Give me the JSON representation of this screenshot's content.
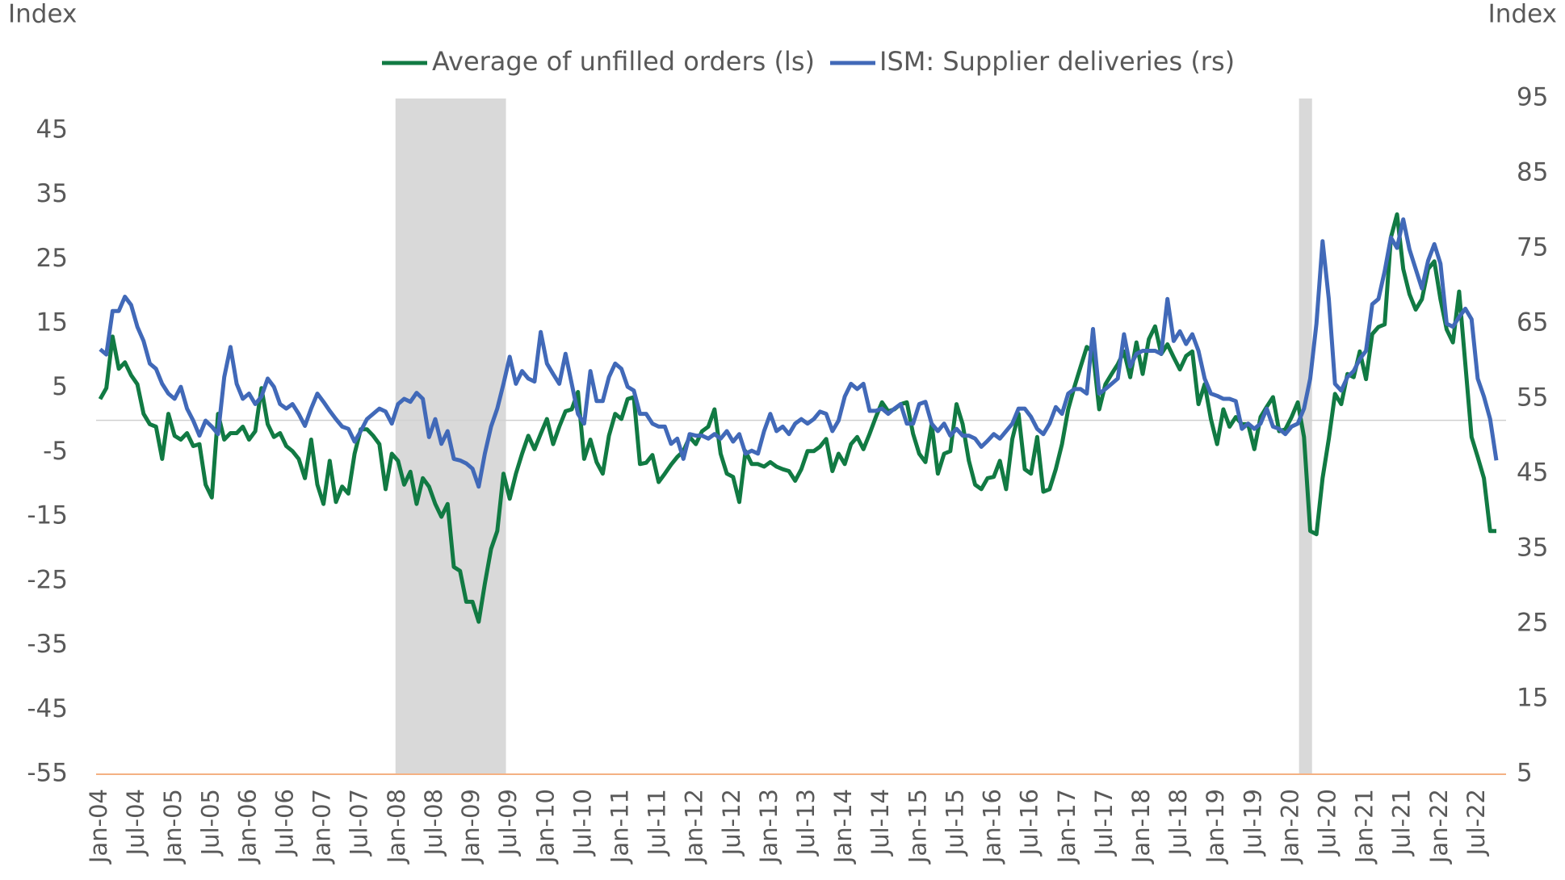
{
  "chart_data": {
    "type": "line",
    "y_label": "Index",
    "y2_label": "Index",
    "categories": [
      "Jan-04",
      null,
      null,
      null,
      null,
      null,
      "Jul-04",
      null,
      null,
      null,
      null,
      null,
      "Jan-05",
      null,
      null,
      null,
      null,
      null,
      "Jul-05",
      null,
      null,
      null,
      null,
      null,
      "Jan-06",
      null,
      null,
      null,
      null,
      null,
      "Jul-06",
      null,
      null,
      null,
      null,
      null,
      "Jan-07",
      null,
      null,
      null,
      null,
      null,
      "Jul-07",
      null,
      null,
      null,
      null,
      null,
      "Jan-08",
      null,
      null,
      null,
      null,
      null,
      "Jul-08",
      null,
      null,
      null,
      null,
      null,
      "Jan-09",
      null,
      null,
      null,
      null,
      null,
      "Jul-09",
      null,
      null,
      null,
      null,
      null,
      "Jan-10",
      null,
      null,
      null,
      null,
      null,
      "Jul-10",
      null,
      null,
      null,
      null,
      null,
      "Jan-11",
      null,
      null,
      null,
      null,
      null,
      "Jul-11",
      null,
      null,
      null,
      null,
      null,
      "Jan-12",
      null,
      null,
      null,
      null,
      null,
      "Jul-12",
      null,
      null,
      null,
      null,
      null,
      "Jan-13",
      null,
      null,
      null,
      null,
      null,
      "Jul-13",
      null,
      null,
      null,
      null,
      null,
      "Jan-14",
      null,
      null,
      null,
      null,
      null,
      "Jul-14",
      null,
      null,
      null,
      null,
      null,
      "Jan-15",
      null,
      null,
      null,
      null,
      null,
      "Jul-15",
      null,
      null,
      null,
      null,
      null,
      "Jan-16",
      null,
      null,
      null,
      null,
      null,
      "Jul-16",
      null,
      null,
      null,
      null,
      null,
      "Jan-17",
      null,
      null,
      null,
      null,
      null,
      "Jul-17",
      null,
      null,
      null,
      null,
      null,
      "Jan-18",
      null,
      null,
      null,
      null,
      null,
      "Jul-18",
      null,
      null,
      null,
      null,
      null,
      "Jan-19",
      null,
      null,
      null,
      null,
      null,
      "Jul-19",
      null,
      null,
      null,
      null,
      null,
      "Jan-20",
      null,
      null,
      null,
      null,
      null,
      "Jul-20",
      null,
      null,
      null,
      null,
      null,
      "Jan-21",
      null,
      null,
      null,
      null,
      null,
      "Jul-21",
      null,
      null,
      null,
      null,
      null,
      "Jan-22",
      null,
      null,
      null,
      null,
      null,
      "Jul-22",
      null,
      null,
      null
    ],
    "series": [
      {
        "name": "Average of unfilled orders (ls)",
        "color": "#117a43",
        "values": [
          3.3,
          5,
          13,
          8,
          9,
          7,
          5.6,
          1,
          -0.6,
          -1,
          -6,
          1,
          -2.4,
          -3,
          -2,
          -4,
          -3.7,
          -10,
          -12,
          1,
          -3,
          -2,
          -2,
          -1,
          -3,
          -1.7,
          5,
          -0.6,
          -2.6,
          -2,
          -4,
          -4.8,
          -6,
          -9,
          -3,
          -10,
          -13,
          -6.3,
          -12.7,
          -10.3,
          -11.4,
          -5.2,
          -1.4,
          -1.4,
          -2.4,
          -3.7,
          -10.7,
          -5.2,
          -6.3,
          -10,
          -8,
          -13,
          -9,
          -10.3,
          -13,
          -15,
          -13,
          -22.8,
          -23.4,
          -28.2,
          -28.2,
          -31.3,
          -25.4,
          -20,
          -17.2,
          -8.3,
          -12.2,
          -8.3,
          -5.2,
          -2.4,
          -4.5,
          -2.1,
          0.2,
          -3.7,
          -1,
          1.4,
          1.7,
          4.4,
          -6,
          -3,
          -6.5,
          -8.3,
          -2.4,
          1,
          0.2,
          3.3,
          3.6,
          -6.8,
          -6.6,
          -5.4,
          -9.6,
          -8.3,
          -6.9,
          -5.7,
          -4.8,
          -2.6,
          -3.7,
          -1.7,
          -1,
          1.7,
          -5.2,
          -8.3,
          -8.8,
          -12.7,
          -4.8,
          -6.8,
          -6.8,
          -7.2,
          -6.5,
          -7.2,
          -7.6,
          -7.9,
          -9.4,
          -7.6,
          -4.8,
          -4.8,
          -4.1,
          -2.9,
          -7.9,
          -5.2,
          -6.8,
          -3.7,
          -2.6,
          -4.5,
          -2.1,
          0.5,
          2.8,
          1.4,
          1.7,
          2.5,
          2.8,
          -2.1,
          -5.2,
          -6.5,
          -0.6,
          -8.3,
          -5.2,
          -4.8,
          2.5,
          -0.6,
          -6.3,
          -10,
          -10.7,
          -9,
          -8.8,
          -6.3,
          -10.7,
          -2.9,
          1,
          -7.6,
          -8.3,
          -2.6,
          -11.1,
          -10.7,
          -7.6,
          -3.7,
          1.7,
          5.2,
          8.3,
          11.4,
          10.6,
          1.7,
          5.6,
          7.2,
          8.7,
          10.7,
          6.7,
          12.1,
          7.2,
          12.6,
          14.6,
          10.3,
          11.8,
          9.8,
          7.9,
          10,
          10.7,
          2.5,
          5.6,
          0.2,
          -3.7,
          1.7,
          -1,
          0.5,
          -0.6,
          -0.6,
          -4.5,
          0.5,
          2.1,
          3.6,
          -1.7,
          -1.4,
          0.5,
          2.8,
          -2.6,
          -17.2,
          -17.7,
          -9,
          -2.9,
          4.1,
          2.5,
          7.2,
          6.7,
          10.7,
          6.4,
          13.4,
          14.5,
          14.9,
          28.4,
          32,
          23.5,
          19.6,
          17.2,
          18.8,
          23.5,
          24.7,
          18.8,
          14.1,
          12.1,
          20,
          8.7,
          -2.6,
          -5.7,
          -9,
          -17.2,
          -17.2
        ]
      },
      {
        "name": "ISM: Supplier deliveries (rs)",
        "color": "#4169b8",
        "axis": "y2",
        "values": [
          61.6,
          60.9,
          66.7,
          66.7,
          68.6,
          67.5,
          64.6,
          62.7,
          59.7,
          59,
          57,
          55.7,
          55,
          56.6,
          53.7,
          52.1,
          50.1,
          52.1,
          51.3,
          50.3,
          57.9,
          61.9,
          57,
          55,
          55.7,
          54.3,
          55.3,
          57.7,
          56.6,
          54.3,
          53.7,
          54.3,
          53,
          51.4,
          53.7,
          55.7,
          54.6,
          53.4,
          52.3,
          51.3,
          51,
          49.3,
          50.7,
          52.3,
          53,
          53.7,
          53.3,
          51.7,
          54.3,
          55,
          54.6,
          55.8,
          55,
          49.9,
          52.3,
          49,
          50.7,
          47,
          46.8,
          46.4,
          45.7,
          43.3,
          47.7,
          51.3,
          53.7,
          57,
          60.6,
          57,
          58.7,
          57.7,
          57.3,
          63.9,
          59.7,
          58.3,
          57,
          61,
          57,
          53,
          51.7,
          58.7,
          54.7,
          54.7,
          57.9,
          59.7,
          59,
          56.6,
          56.1,
          53,
          53,
          51.7,
          51.3,
          51.3,
          49,
          49.7,
          47,
          50.3,
          50.1,
          50.1,
          49.7,
          50.3,
          49.7,
          50.7,
          49.3,
          50.3,
          47.7,
          48.1,
          47.7,
          50.7,
          53,
          50.7,
          51.3,
          50.3,
          51.7,
          52.3,
          51.7,
          52.3,
          53.3,
          53,
          50.7,
          52.1,
          55.3,
          57,
          56.3,
          57,
          53.4,
          53.4,
          53.7,
          53,
          53.7,
          54.3,
          51.7,
          51.7,
          54.3,
          54.6,
          51.7,
          50.7,
          51.7,
          50.1,
          51,
          50.1,
          50.1,
          49.7,
          48.6,
          49.4,
          50.3,
          49.7,
          50.7,
          51.7,
          53.7,
          53.7,
          52.6,
          51,
          50.3,
          51.7,
          53.9,
          53,
          55.7,
          56.3,
          56.3,
          55.7,
          64.3,
          55.7,
          56.3,
          57,
          57.7,
          63.6,
          59.3,
          61,
          61.4,
          61.4,
          61.4,
          61,
          68.3,
          62.7,
          64,
          62.3,
          63.6,
          61.4,
          57.7,
          55.7,
          55.4,
          55,
          55,
          54.7,
          51,
          51.7,
          51,
          51.7,
          53.7,
          51.3,
          51,
          50.3,
          51.3,
          51.7,
          53.7,
          57.7,
          65,
          76,
          68.3,
          57,
          56.1,
          57.9,
          58.7,
          60.3,
          61.4,
          67.6,
          68.3,
          72,
          76.5,
          75.1,
          78.9,
          74.9,
          72.3,
          69.7,
          73.4,
          75.6,
          73,
          65,
          64.6,
          65.9,
          67,
          65.6,
          57.7,
          55.3,
          52.3,
          46.8
        ]
      }
    ],
    "ylim": [
      -55,
      50
    ],
    "yticks": [
      -55,
      -45,
      -35,
      -25,
      -15,
      -5,
      5,
      15,
      25,
      35,
      45
    ],
    "y2lim": [
      5,
      95
    ],
    "y2ticks": [
      5,
      15,
      25,
      35,
      45,
      55,
      65,
      75,
      85,
      95
    ],
    "reference_line": 0
  }
}
